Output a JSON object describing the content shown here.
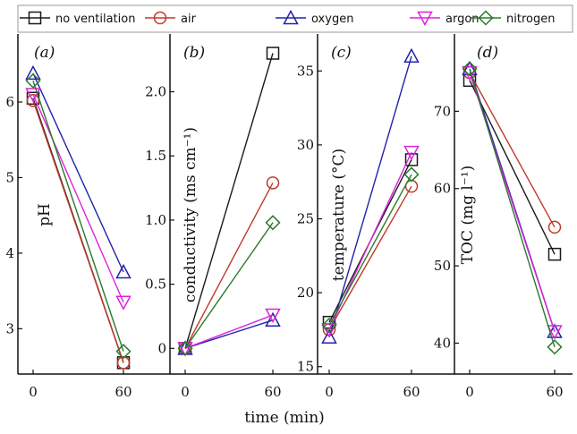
{
  "chart_data": {
    "type": "line",
    "shared_x": {
      "label": "time (min)",
      "ticks": [
        "0",
        "60"
      ]
    },
    "legend": [
      {
        "name": "no ventilation",
        "color": "#1a1a1a",
        "marker": "square"
      },
      {
        "name": "air",
        "color": "#c0392b",
        "marker": "circle"
      },
      {
        "name": "oxygen",
        "color": "#2222aa",
        "marker": "triangle-up"
      },
      {
        "name": "argon",
        "color": "#dd22dd",
        "marker": "triangle-down"
      },
      {
        "name": "nitrogen",
        "color": "#2a7a2a",
        "marker": "diamond"
      }
    ],
    "panels": [
      {
        "label": "(a)",
        "ylabel": "pH",
        "ylim": [
          2.4,
          6.9
        ],
        "yticks": [
          "3",
          "4",
          "5",
          "6"
        ],
        "ytick_values": [
          3,
          4,
          5,
          6
        ],
        "x": [
          0,
          60
        ],
        "series": [
          {
            "name": "no ventilation",
            "values": [
              6.05,
              2.55
            ]
          },
          {
            "name": "air",
            "values": [
              6.02,
              2.55
            ]
          },
          {
            "name": "oxygen",
            "values": [
              6.38,
              3.75
            ]
          },
          {
            "name": "argon",
            "values": [
              6.1,
              3.35
            ]
          },
          {
            "name": "nitrogen",
            "values": [
              6.28,
              2.7
            ]
          }
        ]
      },
      {
        "label": "(b)",
        "ylabel": "conductivity (ms cm⁻¹)",
        "ylim": [
          -0.2,
          2.45
        ],
        "yticks": [
          "0",
          "0.5",
          "1.0",
          "1.5",
          "2.0"
        ],
        "ytick_values": [
          0,
          0.5,
          1.0,
          1.5,
          2.0
        ],
        "x": [
          0,
          60
        ],
        "series": [
          {
            "name": "no ventilation",
            "values": [
              0.0,
              2.3
            ]
          },
          {
            "name": "air",
            "values": [
              0.0,
              1.29
            ]
          },
          {
            "name": "oxygen",
            "values": [
              0.0,
              0.22
            ]
          },
          {
            "name": "argon",
            "values": [
              0.0,
              0.26
            ]
          },
          {
            "name": "nitrogen",
            "values": [
              0.0,
              0.98
            ]
          }
        ]
      },
      {
        "label": "(c)",
        "ylabel": "temperature (°C)",
        "ylim": [
          14.5,
          37.5
        ],
        "yticks": [
          "15",
          "20",
          "25",
          "30",
          "35"
        ],
        "ytick_values": [
          15,
          20,
          25,
          30,
          35
        ],
        "x": [
          0,
          60
        ],
        "series": [
          {
            "name": "no ventilation",
            "values": [
              18.0,
              29.0
            ]
          },
          {
            "name": "air",
            "values": [
              17.5,
              27.2
            ]
          },
          {
            "name": "oxygen",
            "values": [
              17.0,
              36.0
            ]
          },
          {
            "name": "argon",
            "values": [
              17.5,
              29.5
            ]
          },
          {
            "name": "nitrogen",
            "values": [
              17.8,
              28.0
            ]
          }
        ]
      },
      {
        "label": "(d)",
        "ylabel": "TOC (mg l⁻¹)",
        "ylim": [
          36,
          80
        ],
        "yticks": [
          "40",
          "50",
          "60",
          "70"
        ],
        "ytick_values": [
          40,
          50,
          60,
          70
        ],
        "x": [
          0,
          60
        ],
        "series": [
          {
            "name": "no ventilation",
            "values": [
              74.0,
              51.5
            ]
          },
          {
            "name": "air",
            "values": [
              75.0,
              55.0
            ]
          },
          {
            "name": "oxygen",
            "values": [
              75.5,
              41.5
            ]
          },
          {
            "name": "argon",
            "values": [
              75.0,
              41.5
            ]
          },
          {
            "name": "nitrogen",
            "values": [
              75.5,
              39.5
            ]
          }
        ]
      }
    ]
  }
}
